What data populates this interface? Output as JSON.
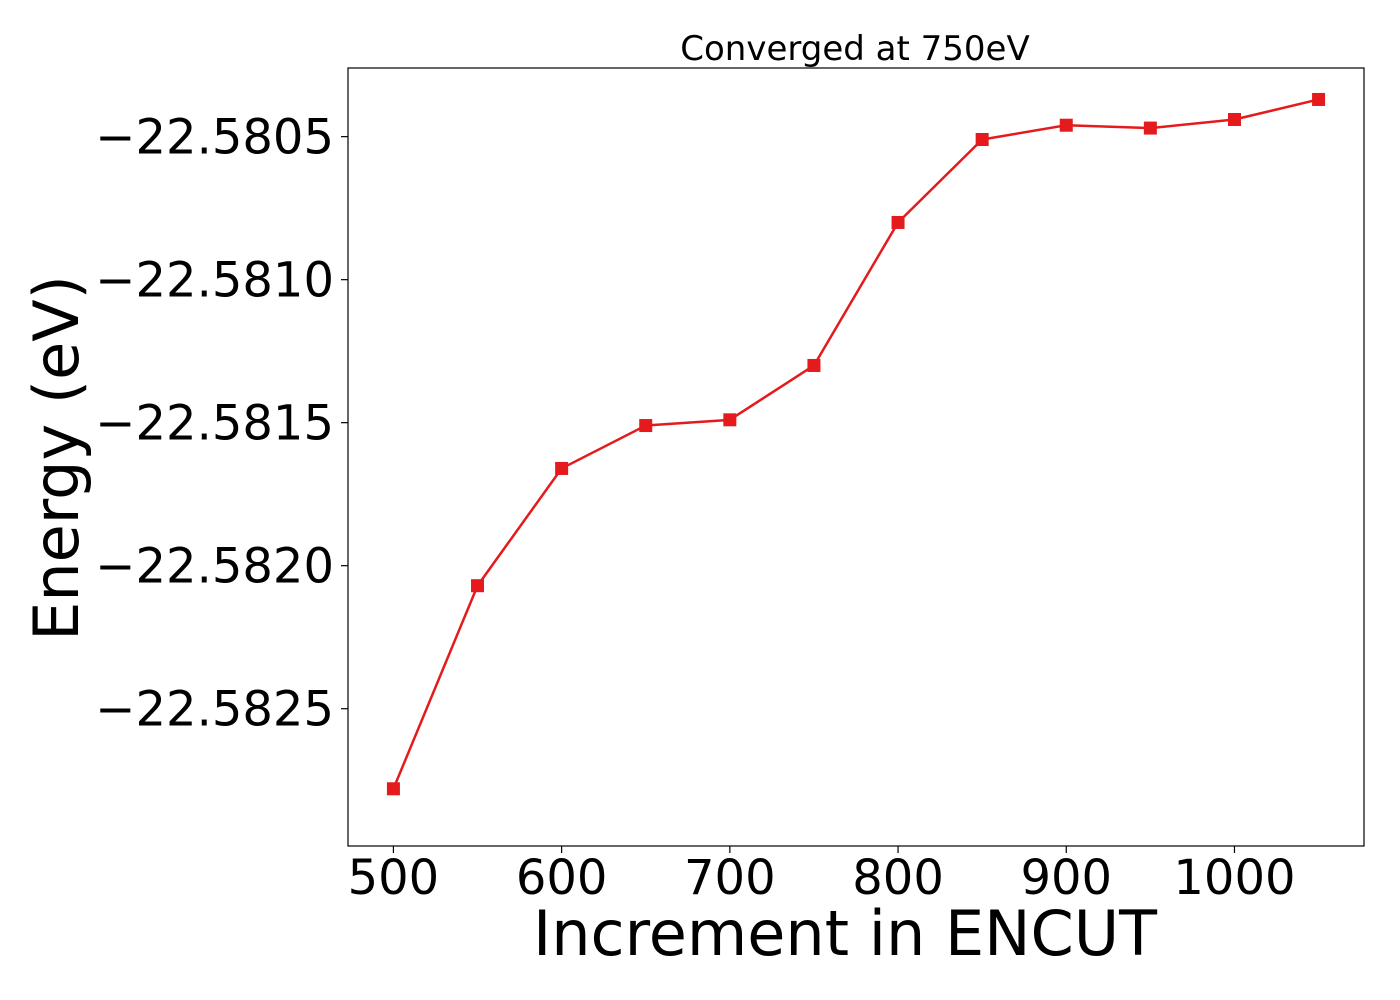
{
  "chart_data": {
    "type": "line",
    "title": "Converged at 750eV",
    "xlabel": "Increment in ENCUT",
    "ylabel": "Energy (eV)",
    "xlim": [
      473,
      1077
    ],
    "ylim": [
      -22.58298,
      -22.58026
    ],
    "xticks": [
      500,
      600,
      700,
      800,
      900,
      1000
    ],
    "xtick_labels": [
      "500",
      "600",
      "700",
      "800",
      "900",
      "1000"
    ],
    "yticks": [
      -22.5825,
      -22.582,
      -22.5815,
      -22.581,
      -22.5805
    ],
    "ytick_labels": [
      "−22.5825",
      "−22.5820",
      "−22.5815",
      "−22.5810",
      "−22.5805"
    ],
    "grid": false,
    "legend": "none",
    "series": [
      {
        "color": "#e41a1c",
        "marker": "square",
        "x": [
          500,
          550,
          600,
          650,
          700,
          750,
          800,
          850,
          900,
          950,
          1000,
          1050
        ],
        "y": [
          -22.58278,
          -22.58207,
          -22.58166,
          -22.58151,
          -22.58149,
          -22.5813,
          -22.5808,
          -22.58051,
          -22.58046,
          -22.58047,
          -22.58044,
          -22.58037
        ]
      }
    ]
  }
}
